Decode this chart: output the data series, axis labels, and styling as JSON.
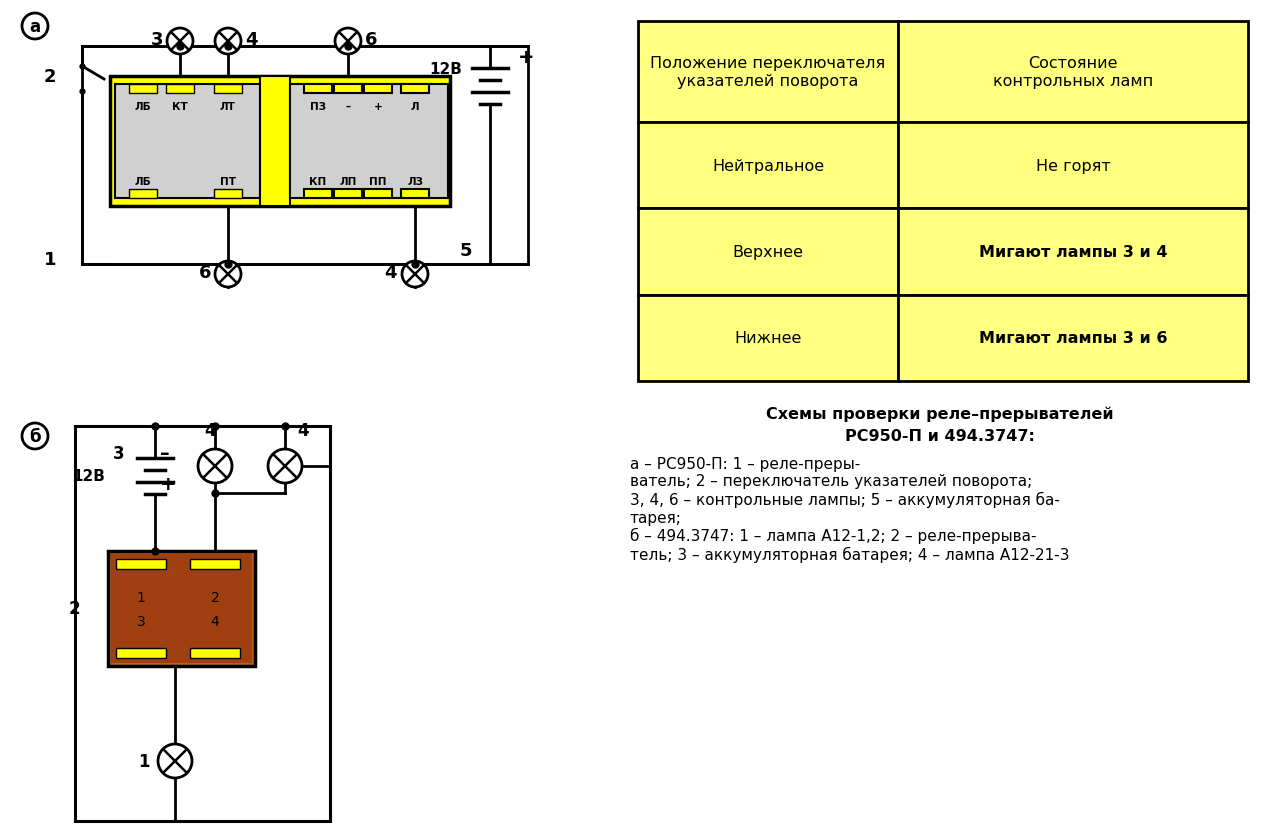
{
  "bg": "#ffffff",
  "relay_a_yellow": "#ffff00",
  "relay_a_inner": "#d0d0d0",
  "connector_yellow": "#ffff00",
  "relay_b_color": "#b8621a",
  "table_fill": "#ffff80",
  "table_border": "#000000",
  "table_header": [
    "Положение переключателя\nуказателей поворота",
    "Состояние\nконтрольных ламп"
  ],
  "table_rows": [
    [
      "Нейтральное",
      "Не горят"
    ],
    [
      "Верхнее",
      "Мигают лампы 3 и 4"
    ],
    [
      "Нижнее",
      "Мигают лампы 3 и 6"
    ]
  ],
  "table_bold_col2_rows": [
    1,
    2
  ],
  "caption_bold1": "Схемы проверки реле–прерывателей",
  "caption_bold2": "РС950-П и 494.3747:",
  "caption_normal": "а – РС950-П: 1 – реле-преры-\nватель; 2 – переключатель указателей поворота;\n3, 4, 6 – контрольные лампы; 5 – аккумуляторная ба-\nтарея;\nб – 494.3747: 1 – лампа А12-1,2; 2 – реле-прерыва-\nтель; 3 – аккумуляторная батарея; 4 – лампа А12-21-3"
}
